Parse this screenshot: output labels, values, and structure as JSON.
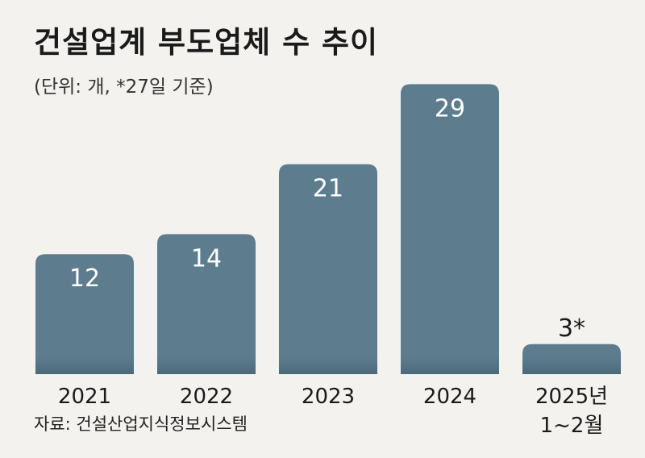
{
  "chart_data": {
    "type": "bar",
    "title": "건설업계 부도업체 수 추이",
    "subtitle": "(단위: 개, *27일 기준)",
    "source": "자료: 건설산업지식정보시스템",
    "categories": [
      "2021",
      "2022",
      "2023",
      "2024",
      "2025년 1~2월"
    ],
    "values": [
      12,
      14,
      21,
      29,
      3
    ],
    "value_labels": [
      "12",
      "14",
      "21",
      "29",
      "3*"
    ],
    "ylim": [
      0,
      30
    ],
    "bar_color": "#5d7d8f",
    "grid": false,
    "legend": "none"
  }
}
